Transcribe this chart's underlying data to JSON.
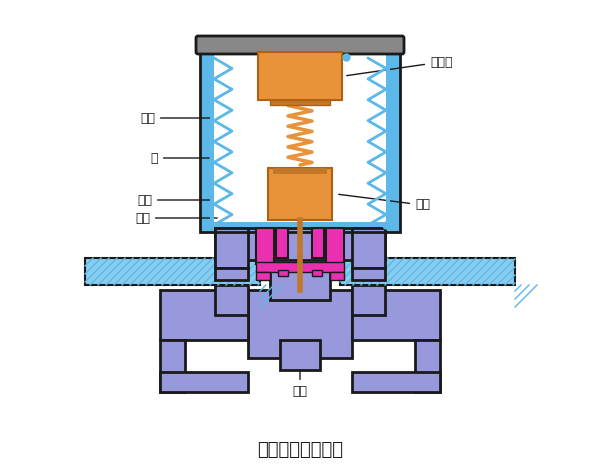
{
  "title": "直接联系式电磁阀",
  "bg_color": "#ffffff",
  "blue": "#5bb8e8",
  "purple": "#7878cc",
  "purple_fill": "#9898dd",
  "orange": "#e8923a",
  "pink": "#e830b0",
  "hatch_blue": "#88ccee",
  "black": "#1a1a1a",
  "white": "#ffffff",
  "gray_cap": "#b0b0b0",
  "labels": {
    "dingtiexin": "定铁心",
    "xianquan": "线圈",
    "zhao": "罩",
    "zhuyifa": "主阀",
    "xiaokong": "小孔",
    "fagan": "阀杆",
    "daoyifa": "导阀"
  },
  "fig_width": 6.0,
  "fig_height": 4.66
}
